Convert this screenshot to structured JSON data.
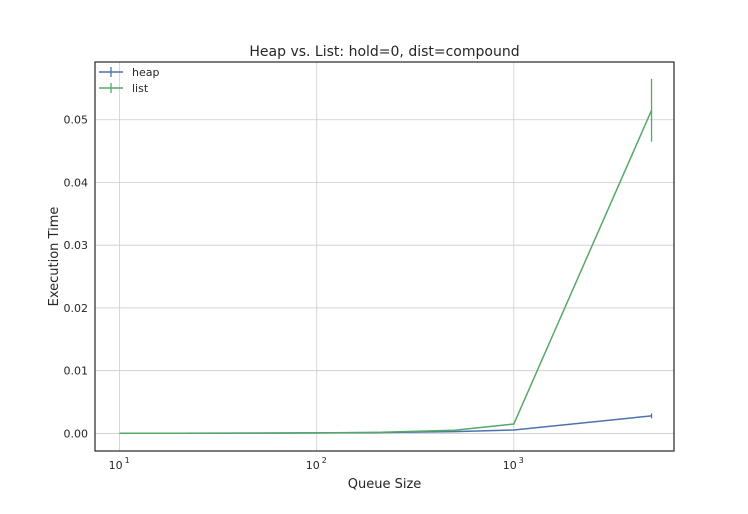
{
  "chart_data": {
    "type": "line",
    "title": "Heap vs. List: hold=0, dist=compound",
    "xlabel": "Queue Size",
    "ylabel": "Execution Time",
    "xscale": "log",
    "xlim": [
      7.5,
      6500
    ],
    "ylim": [
      -0.0028,
      0.0592
    ],
    "x_ticks": [
      10,
      100,
      1000
    ],
    "x_tick_labels": [
      "10",
      "10",
      "10"
    ],
    "x_tick_exponents": [
      "1",
      "2",
      "3"
    ],
    "y_ticks": [
      0.0,
      0.01,
      0.02,
      0.03,
      0.04,
      0.05
    ],
    "y_tick_labels": [
      "0.00",
      "0.01",
      "0.02",
      "0.03",
      "0.04",
      "0.05"
    ],
    "grid": true,
    "legend_position": "top-left",
    "x": [
      10,
      20,
      50,
      100,
      200,
      500,
      1000,
      5000
    ],
    "series": [
      {
        "name": "heap",
        "color": "#4c72b0",
        "values": [
          2e-05,
          3e-05,
          5e-05,
          8e-05,
          0.00013,
          0.00028,
          0.00055,
          0.0028
        ],
        "errors": [
          0,
          0,
          0,
          0,
          0,
          0,
          5e-05,
          0.0004
        ]
      },
      {
        "name": "list",
        "color": "#55a868",
        "values": [
          2e-05,
          3e-05,
          5e-05,
          8e-05,
          0.00017,
          0.0005,
          0.0015,
          0.0515
        ],
        "errors": [
          0,
          0,
          0,
          0,
          0,
          0,
          0.0001,
          0.005
        ]
      }
    ]
  }
}
